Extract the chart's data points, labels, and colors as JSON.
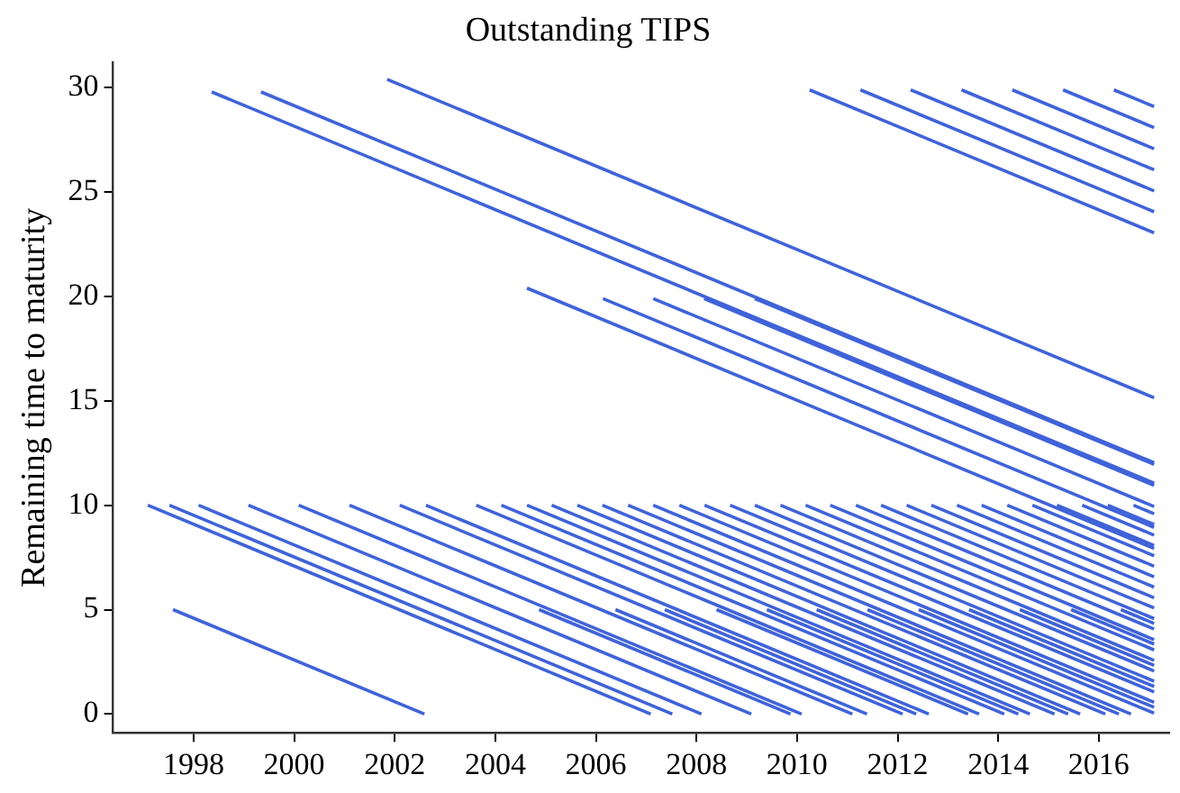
{
  "chart_data": {
    "type": "line",
    "title": "Outstanding TIPS",
    "ylabel": "Remaining time to maturity",
    "xlim": [
      1996.4,
      2017.4
    ],
    "ylim": [
      -0.9,
      31.2
    ],
    "xticks": [
      1998,
      2000,
      2002,
      2004,
      2006,
      2008,
      2010,
      2012,
      2014,
      2016
    ],
    "yticks": [
      0,
      5,
      10,
      15,
      20,
      25,
      30
    ],
    "grid": false,
    "legend": false,
    "series": [
      {
        "color": "#4063d8",
        "x": [
          1998.36,
          2017.1
        ],
        "values": [
          29.8,
          11.06
        ]
      },
      {
        "color": "#4063d8",
        "x": [
          1999.34,
          2017.1
        ],
        "values": [
          29.8,
          12.04
        ]
      },
      {
        "color": "#4063d8",
        "x": [
          2001.85,
          2017.1
        ],
        "values": [
          30.4,
          15.15
        ]
      },
      {
        "color": "#4063d8",
        "x": [
          2010.25,
          2017.1
        ],
        "values": [
          29.9,
          23.05
        ]
      },
      {
        "color": "#4063d8",
        "x": [
          2011.26,
          2017.1
        ],
        "values": [
          29.9,
          24.06
        ]
      },
      {
        "color": "#4063d8",
        "x": [
          2012.26,
          2017.1
        ],
        "values": [
          29.9,
          25.06
        ]
      },
      {
        "color": "#4063d8",
        "x": [
          2013.27,
          2017.1
        ],
        "values": [
          29.9,
          26.07
        ]
      },
      {
        "color": "#4063d8",
        "x": [
          2014.28,
          2017.1
        ],
        "values": [
          29.9,
          27.08
        ]
      },
      {
        "color": "#4063d8",
        "x": [
          2015.29,
          2017.1
        ],
        "values": [
          29.9,
          28.09
        ]
      },
      {
        "color": "#4063d8",
        "x": [
          2016.3,
          2017.1
        ],
        "values": [
          29.9,
          29.1
        ]
      },
      {
        "color": "#4063d8",
        "x": [
          2004.63,
          2017.1
        ],
        "values": [
          20.4,
          7.93
        ]
      },
      {
        "color": "#4063d8",
        "x": [
          2006.14,
          2017.1
        ],
        "values": [
          19.9,
          8.94
        ]
      },
      {
        "color": "#4063d8",
        "x": [
          2007.14,
          2017.1
        ],
        "values": [
          19.9,
          9.94
        ]
      },
      {
        "color": "#4063d8",
        "x": [
          2008.15,
          2017.1
        ],
        "values": [
          19.9,
          10.95
        ]
      },
      {
        "color": "#4063d8",
        "x": [
          2009.16,
          2017.1
        ],
        "values": [
          19.9,
          11.96
        ]
      },
      {
        "color": "#4063d8",
        "x": [
          1997.09,
          2007.09
        ],
        "values": [
          10,
          0
        ]
      },
      {
        "color": "#4063d8",
        "x": [
          1997.52,
          2007.52
        ],
        "values": [
          10,
          0
        ]
      },
      {
        "color": "#4063d8",
        "x": [
          1998.1,
          2008.1
        ],
        "values": [
          10,
          0
        ]
      },
      {
        "color": "#4063d8",
        "x": [
          1999.09,
          2009.09
        ],
        "values": [
          10,
          0
        ]
      },
      {
        "color": "#4063d8",
        "x": [
          2000.09,
          2010.09
        ],
        "values": [
          10,
          0
        ]
      },
      {
        "color": "#4063d8",
        "x": [
          2001.1,
          2011.1
        ],
        "values": [
          10,
          0
        ]
      },
      {
        "color": "#4063d8",
        "x": [
          2002.1,
          2012.1
        ],
        "values": [
          10,
          0
        ]
      },
      {
        "color": "#4063d8",
        "x": [
          2002.62,
          2012.62
        ],
        "values": [
          10,
          0
        ]
      },
      {
        "color": "#4063d8",
        "x": [
          2003.62,
          2013.62
        ],
        "values": [
          10,
          0
        ]
      },
      {
        "color": "#4063d8",
        "x": [
          2004.12,
          2014.12
        ],
        "values": [
          10,
          0
        ]
      },
      {
        "color": "#4063d8",
        "x": [
          2004.63,
          2014.63
        ],
        "values": [
          10,
          0
        ]
      },
      {
        "color": "#4063d8",
        "x": [
          2005.12,
          2015.12
        ],
        "values": [
          10,
          0
        ]
      },
      {
        "color": "#4063d8",
        "x": [
          2005.63,
          2015.63
        ],
        "values": [
          10,
          0
        ]
      },
      {
        "color": "#4063d8",
        "x": [
          2006.13,
          2016.13
        ],
        "values": [
          10,
          0
        ]
      },
      {
        "color": "#4063d8",
        "x": [
          2006.64,
          2016.64
        ],
        "values": [
          10,
          0
        ]
      },
      {
        "color": "#4063d8",
        "x": [
          2007.14,
          2017.1
        ],
        "values": [
          10,
          0.04
        ]
      },
      {
        "color": "#4063d8",
        "x": [
          2007.66,
          2017.1
        ],
        "values": [
          10,
          0.56
        ]
      },
      {
        "color": "#4063d8",
        "x": [
          2008.16,
          2017.1
        ],
        "values": [
          10,
          1.06
        ]
      },
      {
        "color": "#4063d8",
        "x": [
          2008.67,
          2017.1
        ],
        "values": [
          10,
          1.57
        ]
      },
      {
        "color": "#4063d8",
        "x": [
          2009.16,
          2017.1
        ],
        "values": [
          10,
          2.06
        ]
      },
      {
        "color": "#4063d8",
        "x": [
          2009.67,
          2017.1
        ],
        "values": [
          10,
          2.57
        ]
      },
      {
        "color": "#4063d8",
        "x": [
          2010.17,
          2017.1
        ],
        "values": [
          10,
          3.07
        ]
      },
      {
        "color": "#4063d8",
        "x": [
          2010.66,
          2017.1
        ],
        "values": [
          10,
          3.56
        ]
      },
      {
        "color": "#4063d8",
        "x": [
          2011.17,
          2017.1
        ],
        "values": [
          10,
          4.07
        ]
      },
      {
        "color": "#4063d8",
        "x": [
          2011.67,
          2017.1
        ],
        "values": [
          10,
          4.57
        ]
      },
      {
        "color": "#4063d8",
        "x": [
          2012.18,
          2017.1
        ],
        "values": [
          10,
          5.08
        ]
      },
      {
        "color": "#4063d8",
        "x": [
          2012.67,
          2017.1
        ],
        "values": [
          10,
          5.57
        ]
      },
      {
        "color": "#4063d8",
        "x": [
          2013.18,
          2017.1
        ],
        "values": [
          10,
          6.08
        ]
      },
      {
        "color": "#4063d8",
        "x": [
          2013.67,
          2017.1
        ],
        "values": [
          10,
          6.57
        ]
      },
      {
        "color": "#4063d8",
        "x": [
          2014.18,
          2017.1
        ],
        "values": [
          10,
          7.08
        ]
      },
      {
        "color": "#4063d8",
        "x": [
          2014.68,
          2017.1
        ],
        "values": [
          10,
          7.58
        ]
      },
      {
        "color": "#4063d8",
        "x": [
          2015.17,
          2017.1
        ],
        "values": [
          10,
          8.07
        ]
      },
      {
        "color": "#4063d8",
        "x": [
          2015.67,
          2017.1
        ],
        "values": [
          10,
          8.57
        ]
      },
      {
        "color": "#4063d8",
        "x": [
          2016.18,
          2017.1
        ],
        "values": [
          10,
          9.08
        ]
      },
      {
        "color": "#4063d8",
        "x": [
          2016.69,
          2017.1
        ],
        "values": [
          10,
          9.59
        ]
      },
      {
        "color": "#4063d8",
        "x": [
          1997.59,
          2002.59
        ],
        "values": [
          5,
          0
        ]
      },
      {
        "color": "#4063d8",
        "x": [
          2004.87,
          2009.87
        ],
        "values": [
          5,
          0
        ]
      },
      {
        "color": "#4063d8",
        "x": [
          2006.39,
          2011.39
        ],
        "values": [
          5,
          0
        ]
      },
      {
        "color": "#4063d8",
        "x": [
          2007.37,
          2012.37
        ],
        "values": [
          5,
          0
        ]
      },
      {
        "color": "#4063d8",
        "x": [
          2008.4,
          2013.4
        ],
        "values": [
          5,
          0
        ]
      },
      {
        "color": "#4063d8",
        "x": [
          2009.4,
          2014.4
        ],
        "values": [
          5,
          0
        ]
      },
      {
        "color": "#4063d8",
        "x": [
          2010.39,
          2015.39
        ],
        "values": [
          5,
          0
        ]
      },
      {
        "color": "#4063d8",
        "x": [
          2011.4,
          2016.4
        ],
        "values": [
          5,
          0
        ]
      },
      {
        "color": "#4063d8",
        "x": [
          2012.42,
          2017.1
        ],
        "values": [
          5,
          0.32
        ]
      },
      {
        "color": "#4063d8",
        "x": [
          2013.42,
          2017.1
        ],
        "values": [
          5,
          1.32
        ]
      },
      {
        "color": "#4063d8",
        "x": [
          2014.43,
          2017.1
        ],
        "values": [
          5,
          2.33
        ]
      },
      {
        "color": "#4063d8",
        "x": [
          2015.45,
          2017.1
        ],
        "values": [
          5,
          3.35
        ]
      },
      {
        "color": "#4063d8",
        "x": [
          2016.44,
          2017.1
        ],
        "values": [
          5,
          4.34
        ]
      }
    ]
  }
}
